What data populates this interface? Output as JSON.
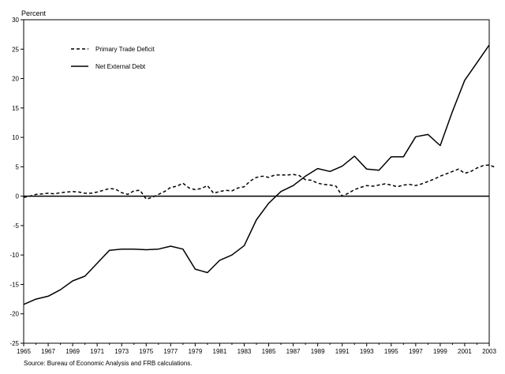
{
  "chart_data": {
    "type": "line",
    "ylabel": "Percent",
    "ylim": [
      -25,
      30
    ],
    "yticks": [
      30,
      25,
      20,
      15,
      10,
      5,
      0,
      -5,
      -10,
      -15,
      -20,
      -25
    ],
    "xlim": [
      1965,
      2003
    ],
    "xticks": [
      1965,
      1967,
      1969,
      1971,
      1973,
      1975,
      1977,
      1979,
      1981,
      1983,
      1985,
      1987,
      1989,
      1991,
      1993,
      1995,
      1997,
      1999,
      2001,
      2003
    ],
    "grid": false,
    "zero_line": true,
    "legend_position": "top-left",
    "series": [
      {
        "name": "Primary Trade Deficit",
        "style": "dashed",
        "color": "#000000",
        "x": [
          1965,
          1965.5,
          1966,
          1966.5,
          1967,
          1967.5,
          1968,
          1968.5,
          1969,
          1969.5,
          1970,
          1970.5,
          1971,
          1971.5,
          1972,
          1972.5,
          1973,
          1973.5,
          1974,
          1974.5,
          1975,
          1975.5,
          1976,
          1976.5,
          1977,
          1977.5,
          1978,
          1978.5,
          1979,
          1979.5,
          1980,
          1980.5,
          1981,
          1981.5,
          1982,
          1982.5,
          1983,
          1983.5,
          1984,
          1984.5,
          1985,
          1985.5,
          1986,
          1986.5,
          1987,
          1987.5,
          1988,
          1988.5,
          1989,
          1989.5,
          1990,
          1990.5,
          1991,
          1991.5,
          1992,
          1992.5,
          1993,
          1993.5,
          1994,
          1994.5,
          1995,
          1995.5,
          1996,
          1996.5,
          1997,
          1997.5,
          1998,
          1998.5,
          1999,
          1999.5,
          2000,
          2000.5,
          2001,
          2001.5,
          2002,
          2002.5,
          2003,
          2003.5
        ],
        "values": [
          -0.2,
          0.0,
          0.3,
          0.4,
          0.5,
          0.4,
          0.6,
          0.7,
          0.8,
          0.7,
          0.5,
          0.5,
          0.7,
          1.0,
          1.3,
          1.2,
          0.6,
          0.3,
          0.9,
          1.0,
          -0.5,
          -0.2,
          0.3,
          0.8,
          1.5,
          1.7,
          2.2,
          1.4,
          1.1,
          1.3,
          1.8,
          0.5,
          0.8,
          1.0,
          0.9,
          1.4,
          1.6,
          2.6,
          3.2,
          3.4,
          3.2,
          3.6,
          3.6,
          3.6,
          3.7,
          3.5,
          2.8,
          2.7,
          2.2,
          2.0,
          1.9,
          1.7,
          0.0,
          0.5,
          1.1,
          1.5,
          1.8,
          1.7,
          1.9,
          2.1,
          1.9,
          1.6,
          1.9,
          2.0,
          1.8,
          2.1,
          2.5,
          2.9,
          3.4,
          3.8,
          4.2,
          4.6,
          3.9,
          4.2,
          4.8,
          5.2,
          5.3,
          4.9
        ]
      },
      {
        "name": "Net External Debt",
        "style": "solid",
        "color": "#000000",
        "x": [
          1965,
          1966,
          1967,
          1968,
          1969,
          1970,
          1971,
          1972,
          1973,
          1974,
          1975,
          1976,
          1977,
          1978,
          1979,
          1980,
          1981,
          1982,
          1983,
          1984,
          1985,
          1986,
          1987,
          1988,
          1989,
          1990,
          1991,
          1992,
          1993,
          1994,
          1995,
          1996,
          1997,
          1998,
          1999,
          2000,
          2001,
          2002,
          2003
        ],
        "values": [
          -18.4,
          -17.5,
          -17.0,
          -15.9,
          -14.4,
          -13.6,
          -11.4,
          -9.2,
          -9.0,
          -9.0,
          -9.1,
          -9.0,
          -8.5,
          -9.0,
          -12.4,
          -13.0,
          -10.9,
          -10.0,
          -8.4,
          -4.0,
          -1.2,
          0.8,
          1.8,
          3.4,
          4.7,
          4.2,
          5.1,
          6.8,
          4.6,
          4.4,
          6.7,
          6.7,
          10.1,
          10.5,
          8.6,
          14.4,
          19.7,
          22.7,
          25.7
        ]
      }
    ]
  },
  "source_note": "Source: Bureau of Economic Analysis and FRB calculations."
}
